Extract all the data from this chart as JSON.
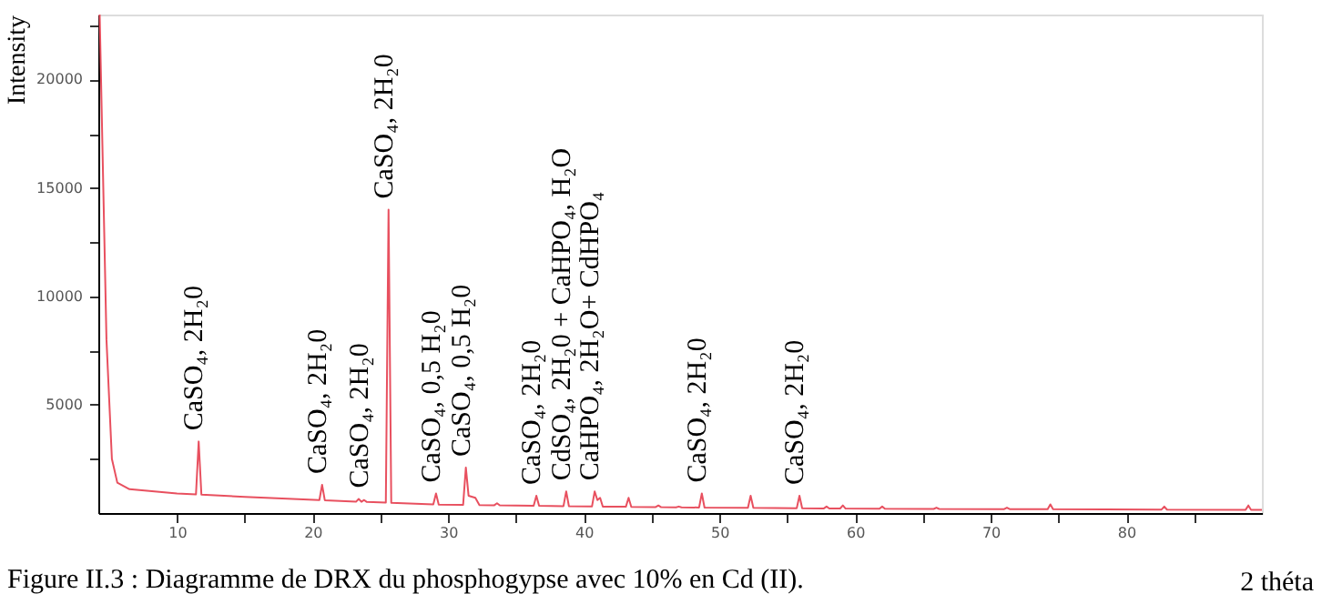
{
  "chart_data": {
    "type": "line",
    "xlabel": "2 théta",
    "ylabel": "Intensity",
    "series": [
      {
        "color": "#e8505f",
        "x": [
          4.3,
          4.5,
          4.8,
          5.2,
          5.6,
          6.5,
          10,
          11.4,
          11.6,
          11.8,
          15,
          20.5,
          20.7,
          20.9,
          23.2,
          23.4,
          23.6,
          23.8,
          24,
          25.4,
          25.6,
          25.8,
          28.9,
          29.1,
          29.3,
          31.1,
          31.3,
          31.5,
          32,
          32.3,
          33.4,
          33.6,
          33.8,
          36.3,
          36.5,
          36.7,
          38.5,
          38.7,
          38.9,
          40.6,
          40.8,
          41.0,
          41.2,
          41.4,
          43.1,
          43.3,
          43.5,
          45.3,
          45.5,
          45.7,
          46.8,
          47,
          47.2,
          48.5,
          48.7,
          48.9,
          52.1,
          52.3,
          52.5,
          55.7,
          55.9,
          56.1,
          57.7,
          57.9,
          58.1,
          58.9,
          59.1,
          59.3,
          61.8,
          62,
          62.2,
          65.8,
          66,
          66.2,
          71,
          71.2,
          71.4,
          74.2,
          74.4,
          74.6,
          82.6,
          82.8,
          83,
          88.8,
          89,
          89.2,
          90
        ],
        "values": [
          23000,
          17000,
          8000,
          2500,
          1400,
          1100,
          900,
          860,
          3300,
          850,
          750,
          600,
          1300,
          590,
          520,
          650,
          520,
          600,
          510,
          480,
          14000,
          470,
          400,
          900,
          390,
          380,
          2100,
          800,
          700,
          370,
          360,
          450,
          355,
          340,
          800,
          335,
          320,
          1000,
          315,
          300,
          1000,
          600,
          700,
          295,
          290,
          700,
          285,
          275,
          350,
          270,
          265,
          300,
          262,
          255,
          900,
          250,
          240,
          800,
          238,
          225,
          800,
          222,
          215,
          300,
          212,
          210,
          350,
          208,
          200,
          300,
          198,
          190,
          250,
          189,
          180,
          250,
          179,
          175,
          400,
          174,
          160,
          300,
          159,
          152,
          350,
          150,
          150
        ]
      }
    ],
    "xlim": [
      4.2,
      90
    ],
    "ylim": [
      0,
      23000
    ],
    "xticks": [
      10,
      {
        "value": 15,
        "label": null
      },
      20,
      {
        "value": 25,
        "label": null
      },
      30,
      {
        "value": 35,
        "label": null
      },
      40,
      {
        "value": 45,
        "label": null
      },
      50,
      {
        "value": 55,
        "label": null
      },
      60,
      {
        "value": 65,
        "label": null
      },
      70,
      {
        "value": 75,
        "label": null
      },
      80,
      {
        "value": 85,
        "label": null
      }
    ],
    "yticks": [
      {
        "value": 2500,
        "label": null
      },
      5000,
      {
        "value": 7500,
        "label": null
      },
      10000,
      {
        "value": 12500,
        "label": null
      },
      15000,
      {
        "value": 17500,
        "label": null
      },
      20000,
      {
        "value": 22500,
        "label": null
      }
    ],
    "grid": false,
    "annotations": [
      {
        "text": "CaSO₄, 2H₂0",
        "x": 11.6,
        "y": 3300
      },
      {
        "text": "CaSO₄, 2H₂0",
        "x": 20.7,
        "y": 1300
      },
      {
        "text": "CaSO₄, 2H₂0",
        "x": 23.8,
        "y": 650
      },
      {
        "text": "CaSO₄, 2H₂0",
        "x": 25.6,
        "y": 14000
      },
      {
        "text": "CaSO₄, 0,5 H₂0",
        "x": 29.1,
        "y": 900
      },
      {
        "text": "CaSO₄, 0,5 H₂0",
        "x": 31.3,
        "y": 2100
      },
      {
        "text": "CaSO₄, 2H₂0",
        "x": 36.5,
        "y": 800
      },
      {
        "text": "CdSO₄, 2H₂0 + CaHPO₄, H₂O",
        "x": 38.7,
        "y": 1000
      },
      {
        "text": "CaHPO₄, 2H₂O+ CdHPO₄",
        "x": 40.8,
        "y": 1000
      },
      {
        "text": "CaSO₄, 2H₂0",
        "x": 48.7,
        "y": 900
      },
      {
        "text": "CaSO₄, 2H₂0",
        "x": 55.9,
        "y": 800
      },
      "Figure II.3 : Diagramme de DRX du phosphogypse avec 10% en Cd (II)."
    ]
  }
}
